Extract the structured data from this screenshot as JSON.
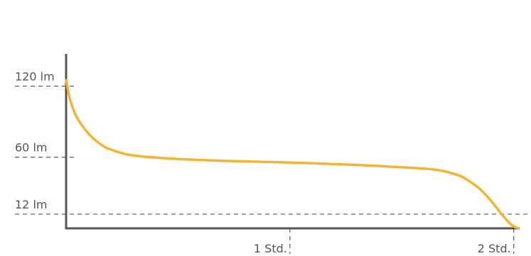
{
  "chart_data": {
    "type": "line",
    "title": "",
    "xlabel": "",
    "ylabel": "",
    "y_ticks": [
      {
        "value": 120,
        "label": "120 lm"
      },
      {
        "value": 60,
        "label": "60 lm"
      },
      {
        "value": 12,
        "label": "12 lm"
      }
    ],
    "x_ticks": [
      {
        "value": 1,
        "label": "1 Std."
      },
      {
        "value": 2,
        "label": "2 Std."
      }
    ],
    "xlim": [
      0,
      2.02
    ],
    "ylim": [
      0,
      140
    ],
    "grid": false,
    "colors": {
      "series": "#F5B335",
      "axis": "#555555",
      "text": "#555555"
    },
    "series": [
      {
        "x": [
          0,
          0.02,
          0.05,
          0.1,
          0.15,
          0.2,
          0.3,
          0.5,
          0.7,
          1.0,
          1.3,
          1.5,
          1.65,
          1.75,
          1.8,
          1.85,
          1.9,
          1.95,
          1.99,
          2.02
        ],
        "y": [
          125,
          107,
          93,
          80,
          71.5,
          66.5,
          61.5,
          58.5,
          57,
          55.5,
          53.5,
          51.5,
          49.5,
          45,
          40,
          33,
          23,
          11,
          3,
          0
        ]
      }
    ]
  }
}
